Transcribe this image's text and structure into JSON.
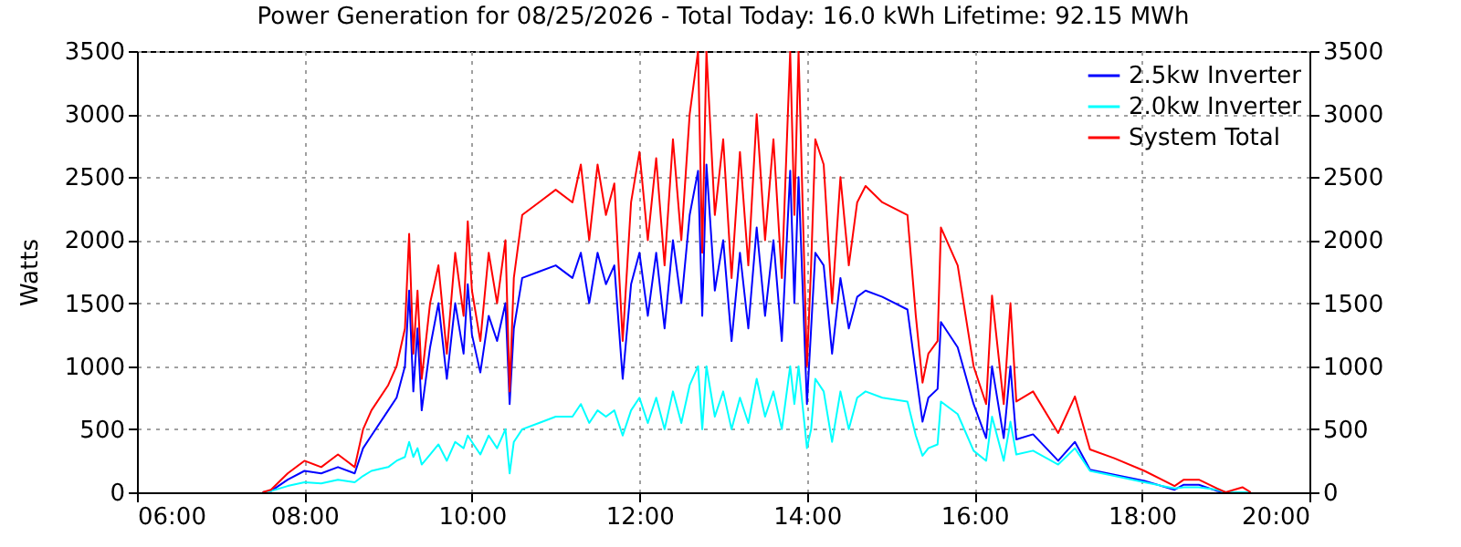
{
  "chart_data": {
    "type": "line",
    "title": "Power Generation for 08/25/2026 - Total Today: 16.0 kWh   Lifetime: 92.15 MWh",
    "ylabel": "Watts",
    "x": [
      7.5,
      7.6,
      7.8,
      8.0,
      8.2,
      8.4,
      8.6,
      8.7,
      8.8,
      9.0,
      9.1,
      9.2,
      9.25,
      9.3,
      9.35,
      9.4,
      9.5,
      9.6,
      9.7,
      9.8,
      9.9,
      9.95,
      10.0,
      10.1,
      10.2,
      10.3,
      10.4,
      10.45,
      10.5,
      10.6,
      10.8,
      11.0,
      11.2,
      11.3,
      11.4,
      11.5,
      11.6,
      11.7,
      11.8,
      11.9,
      12.0,
      12.1,
      12.2,
      12.3,
      12.4,
      12.5,
      12.6,
      12.7,
      12.75,
      12.8,
      12.9,
      13.0,
      13.1,
      13.2,
      13.3,
      13.4,
      13.5,
      13.6,
      13.7,
      13.8,
      13.85,
      13.9,
      14.0,
      14.05,
      14.1,
      14.2,
      14.3,
      14.4,
      14.5,
      14.6,
      14.7,
      14.9,
      15.2,
      15.3,
      15.38,
      15.45,
      15.56,
      15.6,
      15.8,
      15.99,
      16.14,
      16.21,
      16.35,
      16.43,
      16.5,
      16.7,
      17.0,
      17.2,
      17.38,
      17.67,
      18.03,
      18.39,
      18.5,
      18.68,
      18.9,
      19.0,
      19.2,
      19.3
    ],
    "series": [
      {
        "name": "2.5kw Inverter",
        "color": "#0000ff",
        "values": [
          0,
          10,
          100,
          170,
          150,
          200,
          150,
          350,
          450,
          650,
          750,
          1000,
          1600,
          800,
          1300,
          650,
          1150,
          1500,
          900,
          1500,
          1100,
          1650,
          1250,
          950,
          1400,
          1200,
          1500,
          700,
          1300,
          1700,
          1750,
          1800,
          1700,
          1900,
          1500,
          1900,
          1650,
          1800,
          900,
          1650,
          1900,
          1400,
          1900,
          1300,
          2000,
          1500,
          2200,
          2550,
          1400,
          2600,
          1600,
          2000,
          1200,
          1900,
          1300,
          2100,
          1400,
          2000,
          1200,
          2550,
          1500,
          2500,
          700,
          1300,
          1900,
          1800,
          1100,
          1700,
          1300,
          1550,
          1600,
          1550,
          1450,
          950,
          560,
          750,
          820,
          1350,
          1150,
          700,
          430,
          1000,
          430,
          1000,
          420,
          460,
          250,
          400,
          180,
          140,
          90,
          20,
          60,
          60,
          10,
          0,
          0,
          0
        ]
      },
      {
        "name": "2.0kw Inverter",
        "color": "#00ffff",
        "values": [
          0,
          10,
          50,
          80,
          70,
          100,
          80,
          130,
          170,
          200,
          250,
          280,
          400,
          280,
          350,
          220,
          300,
          380,
          250,
          400,
          350,
          450,
          400,
          300,
          450,
          350,
          500,
          150,
          400,
          500,
          550,
          600,
          600,
          700,
          550,
          650,
          600,
          650,
          450,
          650,
          750,
          550,
          750,
          500,
          800,
          550,
          850,
          1000,
          500,
          1000,
          600,
          800,
          500,
          750,
          550,
          900,
          600,
          800,
          500,
          1000,
          700,
          1000,
          350,
          500,
          900,
          800,
          400,
          800,
          500,
          750,
          800,
          750,
          720,
          450,
          290,
          350,
          380,
          720,
          620,
          330,
          250,
          600,
          250,
          560,
          300,
          330,
          220,
          350,
          170,
          130,
          80,
          30,
          40,
          40,
          20,
          0,
          0,
          0
        ]
      },
      {
        "name": "System Total",
        "color": "#ff0000",
        "values": [
          0,
          20,
          150,
          250,
          200,
          300,
          200,
          500,
          650,
          850,
          1000,
          1300,
          2050,
          1100,
          1600,
          900,
          1500,
          1800,
          1100,
          1900,
          1400,
          2150,
          1600,
          1200,
          1900,
          1500,
          2000,
          800,
          1700,
          2200,
          2300,
          2400,
          2300,
          2600,
          2000,
          2600,
          2200,
          2450,
          1200,
          2300,
          2700,
          2000,
          2650,
          1800,
          2800,
          2000,
          3000,
          3500,
          1900,
          3500,
          2200,
          2800,
          1700,
          2700,
          1800,
          3000,
          2000,
          2800,
          1700,
          3500,
          2200,
          3500,
          1000,
          1800,
          2800,
          2600,
          1500,
          2500,
          1800,
          2300,
          2430,
          2300,
          2200,
          1400,
          870,
          1100,
          1200,
          2100,
          1800,
          1000,
          700,
          1560,
          700,
          1500,
          720,
          800,
          470,
          760,
          340,
          270,
          170,
          50,
          100,
          100,
          30,
          0,
          40,
          0
        ]
      }
    ],
    "xlim": [
      6,
      20
    ],
    "xticks": [
      {
        "value": 6,
        "label": "06:00"
      },
      {
        "value": 8,
        "label": "08:00"
      },
      {
        "value": 10,
        "label": "10:00"
      },
      {
        "value": 12,
        "label": "12:00"
      },
      {
        "value": 14,
        "label": "14:00"
      },
      {
        "value": 16,
        "label": "16:00"
      },
      {
        "value": 18,
        "label": "18:00"
      },
      {
        "value": 20,
        "label": "20:00"
      }
    ],
    "ylim": [
      0,
      3500
    ],
    "yticks": [
      0,
      500,
      1000,
      1500,
      2000,
      2500,
      3000,
      3500
    ],
    "y2lim": [
      0,
      3500
    ],
    "y2ticks": [
      0,
      500,
      1000,
      1500,
      2000,
      2500,
      3000,
      3500
    ],
    "grid": true,
    "legend": "top right"
  }
}
